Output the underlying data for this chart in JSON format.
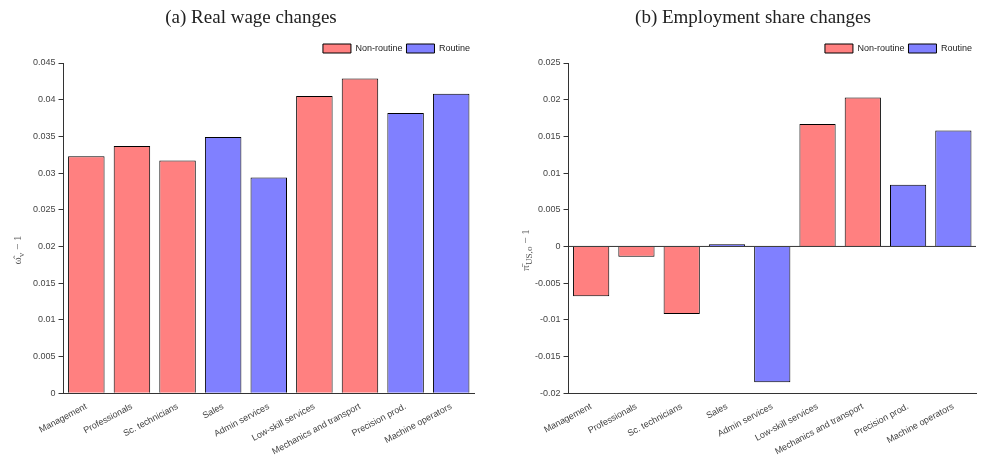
{
  "chart_data": [
    {
      "type": "bar",
      "title": "(a) Real wage changes",
      "ylabel": "ω̂$_{v}$ − 1",
      "categories": [
        "Management",
        "Professionals",
        "Sc. technicians",
        "Sales",
        "Admin services",
        "Low-skill services",
        "Mechanics and transport",
        "Precision prod.",
        "Machine operators"
      ],
      "series": [
        {
          "name": "Non-routine",
          "color": "#ff8080",
          "values": [
            0.0323,
            0.0337,
            0.0317,
            null,
            null,
            0.0405,
            0.0429,
            null,
            null
          ]
        },
        {
          "name": "Routine",
          "color": "#8080ff",
          "values": [
            null,
            null,
            null,
            0.0349,
            0.0294,
            null,
            null,
            0.0382,
            0.0408
          ]
        }
      ],
      "ylim": [
        0,
        0.045
      ],
      "yticks": [
        0,
        0.005,
        0.01,
        0.015,
        0.02,
        0.025,
        0.03,
        0.035,
        0.04,
        0.045
      ],
      "legend": "top right",
      "grid": false
    },
    {
      "type": "bar",
      "title": "(b) Employment share changes",
      "ylabel": "π̄$_{US,o}$ − 1",
      "categories": [
        "Management",
        "Professionals",
        "Sc. technicians",
        "Sales",
        "Admin services",
        "Low-skill services",
        "Mechanics and transport",
        "Precision prod.",
        "Machine operators"
      ],
      "series": [
        {
          "name": "Non-routine",
          "color": "#ff8080",
          "values": [
            -0.0068,
            -0.0014,
            -0.0092,
            null,
            null,
            0.0167,
            0.0203,
            null,
            null
          ]
        },
        {
          "name": "Routine",
          "color": "#8080ff",
          "values": [
            null,
            null,
            null,
            0.0003,
            -0.0185,
            null,
            null,
            0.0084,
            0.0158
          ]
        }
      ],
      "ylim": [
        -0.02,
        0.025
      ],
      "yticks": [
        -0.02,
        -0.015,
        -0.01,
        -0.005,
        0,
        0.005,
        0.01,
        0.015,
        0.02,
        0.025
      ],
      "ref_lines": [
        {
          "axis": "y",
          "value": 0
        }
      ],
      "legend": "top right",
      "grid": false
    }
  ]
}
